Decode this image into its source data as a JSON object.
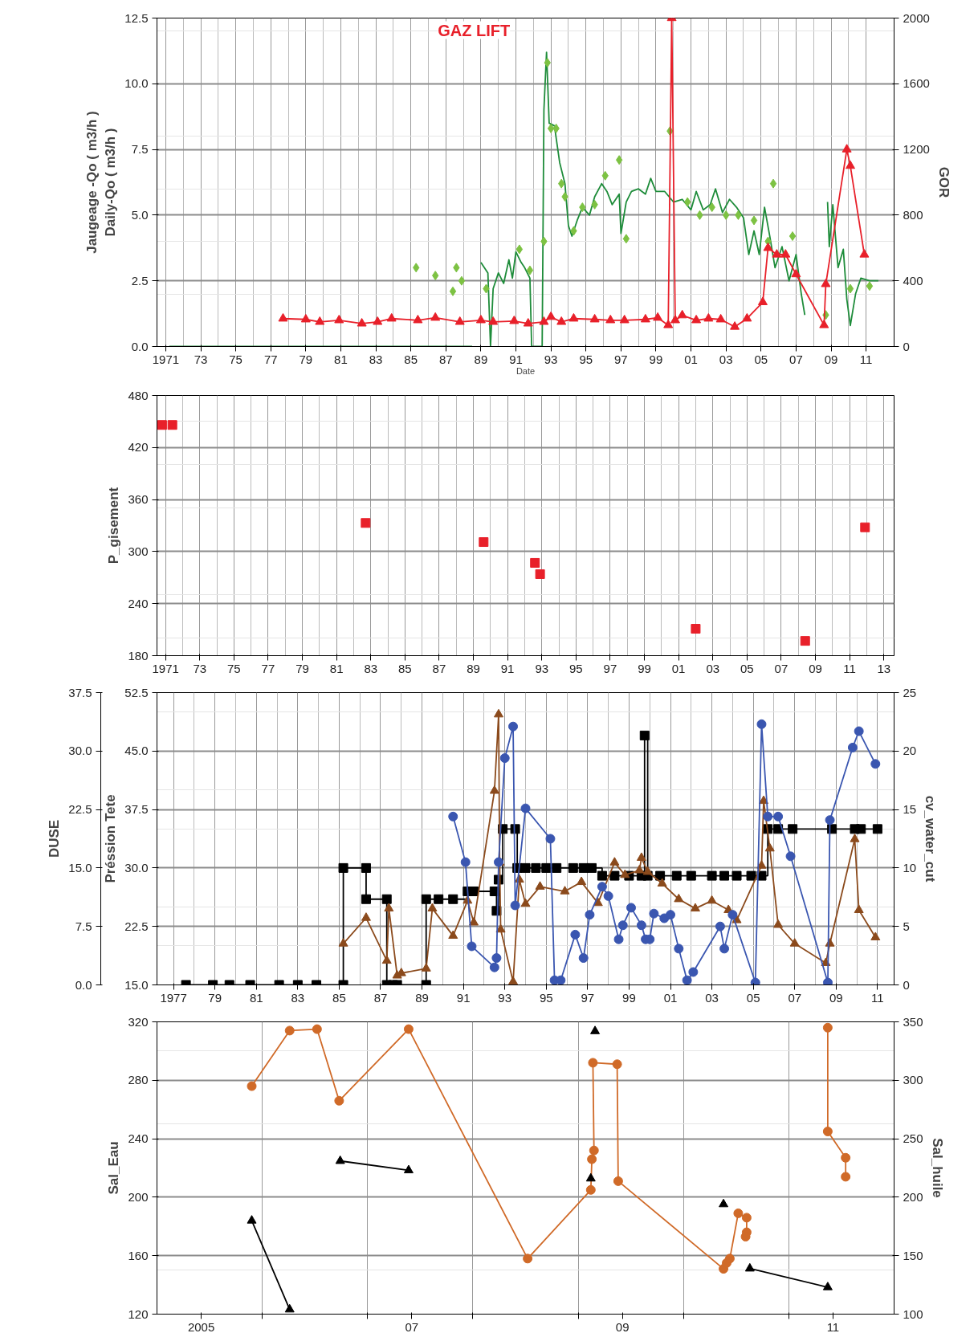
{
  "chart_data": [
    {
      "type": "line",
      "xlabel": "Date",
      "ylabel": "Jaugeage -Qo ( m3/h )\nDaily-Qo ( m3/h )",
      "y2label": "GOR",
      "grid": true,
      "line_style": "solid",
      "annotations": [
        "GAZ LIFT"
      ],
      "xlim": [
        1970.5,
        2012.6
      ],
      "xticks": [
        1971,
        {
          "value": 1973,
          "label": "73"
        },
        {
          "value": 1975,
          "label": "75"
        },
        {
          "value": 1977,
          "label": "77"
        },
        {
          "value": 1979,
          "label": "79"
        },
        {
          "value": 1981,
          "label": "81"
        },
        {
          "value": 1983,
          "label": "83"
        },
        {
          "value": 1985,
          "label": "85"
        },
        {
          "value": 1987,
          "label": "87"
        },
        {
          "value": 1989,
          "label": "89"
        },
        {
          "value": 1991,
          "label": "91"
        },
        {
          "value": 1993,
          "label": "93"
        },
        {
          "value": 1995,
          "label": "95"
        },
        {
          "value": 1997,
          "label": "97"
        },
        {
          "value": 1999,
          "label": "99"
        },
        {
          "value": 2001,
          "label": "01"
        },
        {
          "value": 2003,
          "label": "03"
        },
        {
          "value": 2005,
          "label": "05"
        },
        {
          "value": 2007,
          "label": "07"
        },
        {
          "value": 2009,
          "label": "09"
        },
        {
          "value": 2011,
          "label": "11"
        }
      ],
      "ylim": [
        0,
        12.5
      ],
      "yticks": [
        {
          "value": 0,
          "label": "0.0"
        },
        {
          "value": 2.5,
          "label": "2.5"
        },
        {
          "value": 5,
          "label": "5.0"
        },
        {
          "value": 7.5,
          "label": "7.5"
        },
        {
          "value": 10,
          "label": "10.0"
        },
        {
          "value": 12.5,
          "label": "12.5"
        }
      ],
      "y2lim": [
        0,
        2000
      ],
      "y2ticks": [
        0,
        400,
        800,
        1200,
        1600,
        2000
      ],
      "series": [
        {
          "color": "#1e8c3a",
          "marker": "none",
          "x": [
            1971.2,
            1988.5,
            1988.7,
            1989.0,
            1989.4,
            1989.55,
            1989.7,
            1990.0,
            1990.3,
            1990.6,
            1990.8,
            1991.0,
            1991.3,
            1991.5,
            1991.8,
            1991.9,
            1992.5,
            1992.6,
            1992.75,
            1992.9,
            1993.2,
            1993.5,
            1993.8,
            1994.0,
            1994.2,
            1994.5,
            1994.8,
            1995.2,
            1995.5,
            1995.9,
            1996.2,
            1996.5,
            1996.9,
            1997.0,
            1997.3,
            1997.6,
            1998.0,
            1998.4,
            1998.7,
            1999.0,
            1999.5,
            2000.0,
            2000.5,
            2001.0,
            2001.3,
            2001.7,
            2002.1,
            2002.4,
            2002.8,
            2003.2,
            2003.6,
            2004.0,
            2004.3,
            2004.6,
            2004.9,
            2005.2,
            2005.5,
            2005.8,
            2006.2,
            2006.6,
            2007.0,
            2007.3,
            2007.5,
            2008.0,
            2008.8,
            2008.9,
            2009.1,
            2009.4,
            2009.7,
            2009.9,
            2010.1,
            2010.4,
            2010.7,
            2011.2,
            2011.7
          ],
          "values": [
            0,
            0,
            null,
            3.2,
            2.8,
            0,
            2.2,
            2.8,
            2.4,
            3.3,
            2.6,
            3.6,
            3.2,
            3.0,
            2.6,
            0,
            0,
            9.0,
            11.2,
            8.5,
            8.4,
            7.0,
            6.2,
            4.6,
            4.2,
            4.8,
            5.3,
            5.0,
            5.7,
            6.2,
            5.9,
            5.4,
            5.8,
            4.3,
            5.5,
            5.9,
            6.0,
            5.8,
            6.4,
            5.9,
            5.9,
            5.5,
            5.6,
            5.2,
            5.9,
            5.2,
            5.4,
            6.0,
            5.1,
            5.6,
            5.3,
            4.9,
            3.5,
            4.4,
            3.5,
            5.3,
            4.2,
            3.0,
            3.8,
            2.5,
            3.5,
            2.0,
            1.2,
            null,
            5.5,
            3.8,
            5.4,
            3.0,
            3.7,
            1.8,
            0.8,
            2.0,
            2.6,
            2.5,
            2.5
          ]
        },
        {
          "type": "scatter",
          "color": "#7dc243",
          "marker": "diamond",
          "x": [
            1985.3,
            1986.4,
            1987.4,
            1987.6,
            1987.9,
            1989.3,
            1991.2,
            1991.8,
            1992.6,
            1992.8,
            1993.0,
            1993.3,
            1993.6,
            1993.8,
            1994.3,
            1994.8,
            1995.5,
            1996.1,
            1996.9,
            1997.3,
            1999.8,
            2000.8,
            2001.5,
            2002.2,
            2003.0,
            2003.7,
            2004.6,
            2005.4,
            2005.7,
            2006.8,
            2008.7,
            2010.1,
            2011.2
          ],
          "values": [
            3.0,
            2.7,
            2.1,
            3.0,
            2.5,
            2.2,
            3.7,
            2.9,
            4.0,
            10.8,
            8.3,
            8.3,
            6.2,
            5.7,
            4.4,
            5.3,
            5.4,
            6.5,
            7.1,
            4.1,
            8.2,
            5.5,
            5.0,
            5.3,
            5.0,
            5.0,
            4.8,
            4.0,
            6.2,
            4.2,
            1.2,
            2.2,
            2.3
          ]
        },
        {
          "axis": "y2",
          "color": "#e8202a",
          "marker": "triangle",
          "x": [
            1977.7,
            1979.0,
            1979.8,
            1980.9,
            1982.2,
            1983.1,
            1983.9,
            1985.4,
            1986.4,
            1987.8,
            1989.0,
            1989.7,
            1990.9,
            1991.7,
            1992.6,
            1993.0,
            1993.6,
            1994.3,
            1995.5,
            1996.4,
            1997.2,
            1998.4,
            1999.1,
            1999.7,
            1999.9,
            2000.1,
            2000.5,
            2001.3,
            2002.0,
            2002.7,
            2003.5,
            2004.2,
            2005.1,
            2005.4,
            2005.9,
            2006.4,
            2007.0,
            2008.6,
            2008.7,
            2009.9,
            2010.1,
            2010.9
          ],
          "values": [
            170,
            165,
            150,
            160,
            140,
            150,
            170,
            160,
            175,
            150,
            160,
            150,
            155,
            140,
            150,
            180,
            150,
            170,
            165,
            160,
            160,
            165,
            175,
            130,
            2000,
            160,
            190,
            160,
            170,
            165,
            120,
            170,
            270,
            600,
            560,
            560,
            440,
            130,
            380,
            1200,
            1100,
            560
          ]
        }
      ]
    },
    {
      "type": "scatter",
      "ylabel": "P_gisement",
      "grid": true,
      "xlim": [
        1970.5,
        2013.6
      ],
      "xticks": [
        1971,
        {
          "value": 1973,
          "label": "73"
        },
        {
          "value": 1975,
          "label": "75"
        },
        {
          "value": 1977,
          "label": "77"
        },
        {
          "value": 1979,
          "label": "79"
        },
        {
          "value": 1981,
          "label": "81"
        },
        {
          "value": 1983,
          "label": "83"
        },
        {
          "value": 1985,
          "label": "85"
        },
        {
          "value": 1987,
          "label": "87"
        },
        {
          "value": 1989,
          "label": "89"
        },
        {
          "value": 1991,
          "label": "91"
        },
        {
          "value": 1993,
          "label": "93"
        },
        {
          "value": 1995,
          "label": "95"
        },
        {
          "value": 1997,
          "label": "97"
        },
        {
          "value": 1999,
          "label": "99"
        },
        {
          "value": 2001,
          "label": "01"
        },
        {
          "value": 2003,
          "label": "03"
        },
        {
          "value": 2005,
          "label": "05"
        },
        {
          "value": 2007,
          "label": "07"
        },
        {
          "value": 2009,
          "label": "09"
        },
        {
          "value": 2011,
          "label": "11"
        },
        {
          "value": 2013,
          "label": "13"
        }
      ],
      "ylim": [
        180,
        480
      ],
      "yticks": [
        180,
        240,
        300,
        360,
        420,
        480
      ],
      "series": [
        {
          "color": "#e8202a",
          "marker": "square",
          "x": [
            1970.8,
            1971.4,
            1982.7,
            1989.6,
            1992.6,
            1992.9,
            2002.0,
            2008.4,
            2011.9
          ],
          "values": [
            446,
            446,
            333,
            311,
            287,
            274,
            211,
            197,
            328
          ]
        }
      ]
    },
    {
      "type": "line",
      "ylabel": "DUSE",
      "y3label": "Préssion Tete",
      "y2label": "cv_water_cut",
      "grid": true,
      "line_style": "solid",
      "xlim": [
        1976.2,
        2011.8
      ],
      "xticks": [
        1977,
        {
          "value": 1979,
          "label": "79"
        },
        {
          "value": 1981,
          "label": "81"
        },
        {
          "value": 1983,
          "label": "83"
        },
        {
          "value": 1985,
          "label": "85"
        },
        {
          "value": 1987,
          "label": "87"
        },
        {
          "value": 1989,
          "label": "89"
        },
        {
          "value": 1991,
          "label": "91"
        },
        {
          "value": 1993,
          "label": "93"
        },
        {
          "value": 1995,
          "label": "95"
        },
        {
          "value": 1997,
          "label": "97"
        },
        {
          "value": 1999,
          "label": "99"
        },
        {
          "value": 2001,
          "label": "01"
        },
        {
          "value": 2003,
          "label": "03"
        },
        {
          "value": 2005,
          "label": "05"
        },
        {
          "value": 2007,
          "label": "07"
        },
        {
          "value": 2009,
          "label": "09"
        },
        {
          "value": 2011,
          "label": "11"
        }
      ],
      "ylim": [
        0,
        37.5
      ],
      "yticks": [
        {
          "value": 0,
          "label": "0.0"
        },
        {
          "value": 7.5,
          "label": "7.5"
        },
        {
          "value": 15,
          "label": "15.0"
        },
        {
          "value": 22.5,
          "label": "22.5"
        },
        {
          "value": 30,
          "label": "30.0"
        },
        {
          "value": 37.5,
          "label": "37.5"
        }
      ],
      "y3lim": [
        15,
        52.5
      ],
      "y3ticks": [
        {
          "value": 15,
          "label": "15.0"
        },
        {
          "value": 22.5,
          "label": "22.5"
        },
        {
          "value": 30,
          "label": "30.0"
        },
        {
          "value": 37.5,
          "label": "37.5"
        },
        {
          "value": 45,
          "label": "45.0"
        },
        {
          "value": 52.5,
          "label": "52.5"
        }
      ],
      "y2lim": [
        0,
        25
      ],
      "y2ticks": [
        0,
        5,
        10,
        15,
        20,
        25
      ],
      "series": [
        {
          "type": "step",
          "color": "#000000",
          "marker": "square",
          "x": [
            1977.6,
            1978.9,
            1979.7,
            1980.7,
            1982.1,
            1983.0,
            1983.9,
            1985.2,
            1985.2,
            1986.3,
            1986.3,
            1987.3,
            1987.3,
            1987.6,
            1987.8,
            1989.2,
            1989.2,
            1989.8,
            1990.5,
            1991.2,
            1991.5,
            1992.5,
            1992.6,
            1992.7,
            1992.9,
            1993.5,
            1993.6,
            1994.0,
            1994.5,
            1995.0,
            1995.5,
            1996.3,
            1996.8,
            1997.2,
            1997.7,
            1998.3,
            1999.0,
            1999.6,
            1999.75,
            1999.9,
            2000.5,
            2001.3,
            2002.0,
            2003.0,
            2003.6,
            2004.2,
            2004.9,
            2005.4,
            2005.7,
            2006.2,
            2006.9,
            2008.8,
            2009.9,
            2010.2,
            2011.0
          ],
          "values": [
            0,
            0,
            0,
            0,
            0,
            0,
            0,
            0,
            15,
            15,
            11,
            11,
            0,
            0,
            0,
            0,
            11,
            11,
            11,
            12,
            12,
            12,
            9.5,
            13.5,
            20,
            20,
            15,
            15,
            15,
            15,
            15,
            15,
            15,
            15,
            14,
            14,
            14,
            14,
            32,
            14,
            14,
            14,
            14,
            14,
            14,
            14,
            14,
            14,
            20,
            20,
            20,
            20,
            20,
            20,
            20
          ]
        },
        {
          "axis": "y3",
          "color": "#8b4a1c",
          "marker": "triangle",
          "x": [
            1985.2,
            1986.3,
            1987.3,
            1987.4,
            1987.8,
            1988.0,
            1989.2,
            1989.5,
            1990.5,
            1991.2,
            1991.5,
            1992.5,
            1992.7,
            1992.75,
            1992.8,
            1993.4,
            1993.7,
            1994.0,
            1994.7,
            1995.9,
            1996.7,
            1997.5,
            1998.3,
            1998.8,
            1999.5,
            1999.6,
            1999.9,
            2000.6,
            2001.4,
            2002.2,
            2003.0,
            2003.8,
            2004.2,
            2005.4,
            2005.5,
            2005.8,
            2006.2,
            2007.0,
            2008.5,
            2008.7,
            2009.9,
            2010.1,
            2010.9
          ],
          "values": [
            20.3,
            23.6,
            18.1,
            24.8,
            16.2,
            16.5,
            17.1,
            24.8,
            21.3,
            25.8,
            23.0,
            39.9,
            49.7,
            30.7,
            22.1,
            15.4,
            28.5,
            25.4,
            27.6,
            27.0,
            28.2,
            25.5,
            30.7,
            29.1,
            29.7,
            31.3,
            29.5,
            28.0,
            26.0,
            24.8,
            25.8,
            24.6,
            23.3,
            30.3,
            38.6,
            32.5,
            22.7,
            20.3,
            17.8,
            20.3,
            33.7,
            24.6,
            21.1
          ]
        },
        {
          "axis": "y2",
          "color": "#3a56b0",
          "marker": "circle",
          "x": [
            1990.5,
            1991.1,
            1991.4,
            1992.5,
            1992.6,
            1992.7,
            1993.0,
            1993.4,
            1993.5,
            1994.0,
            1995.2,
            1995.4,
            1995.7,
            1996.4,
            1996.8,
            1997.1,
            1997.7,
            1998.0,
            1998.5,
            1998.7,
            1999.1,
            1999.6,
            1999.8,
            2000.0,
            2000.2,
            2000.7,
            2001.0,
            2001.4,
            2001.8,
            2002.1,
            2003.4,
            2003.6,
            2004.0,
            2005.1,
            2005.4,
            2005.7,
            2006.2,
            2006.8,
            2008.6,
            2008.7,
            2009.8,
            2010.1,
            2010.9
          ],
          "values": [
            14.4,
            10.5,
            3.3,
            1.5,
            2.3,
            10.5,
            19.4,
            22.1,
            6.8,
            15.1,
            12.5,
            0.4,
            0.4,
            4.3,
            2.3,
            6.0,
            8.4,
            7.6,
            3.9,
            5.1,
            6.6,
            5.1,
            3.9,
            3.9,
            6.1,
            5.7,
            6.0,
            3.1,
            0.4,
            1.1,
            5.0,
            3.1,
            6.0,
            0.2,
            22.3,
            14.4,
            14.4,
            11.0,
            0.2,
            14.1,
            20.3,
            21.7,
            18.9
          ]
        }
      ]
    },
    {
      "type": "line",
      "ylabel": "Sal_Eau",
      "y2label": "Sal_huile",
      "grid": true,
      "line_style": "solid",
      "xlim": [
        2004.58,
        2011.58
      ],
      "xticks": [
        2005,
        {
          "value": 2005.58,
          "label": null
        },
        {
          "value": 2006.58,
          "label": null
        },
        {
          "value": 2007,
          "label": "07"
        },
        {
          "value": 2007.58,
          "label": null
        },
        {
          "value": 2008.58,
          "label": null
        },
        {
          "value": 2009,
          "label": "09"
        },
        {
          "value": 2009.58,
          "label": null
        },
        {
          "value": 2010.58,
          "label": null
        },
        {
          "value": 2011,
          "label": "11"
        }
      ],
      "ylim": [
        120,
        320
      ],
      "yticks": [
        120,
        160,
        200,
        240,
        280,
        320
      ],
      "y2lim": [
        100,
        350
      ],
      "y2ticks": [
        100,
        150,
        200,
        250,
        300,
        350
      ],
      "series": [
        {
          "color": "#d06a28",
          "marker": "circle",
          "x": [
            2005.48,
            2005.84,
            2006.1,
            2006.31,
            2006.97,
            2008.1,
            2008.7,
            2008.71,
            2008.73,
            2008.72,
            2008.95,
            2008.96,
            2009.96,
            2009.99,
            2010.02,
            2010.1,
            2010.18,
            2010.18,
            2010.17,
            2010.58,
            2010.95,
            2010.95,
            2011.12,
            2011.12
          ],
          "values": [
            276,
            314,
            315,
            266,
            315,
            158,
            205,
            226,
            232,
            292,
            291,
            211,
            151,
            155,
            158,
            189,
            186,
            176,
            173,
            null,
            316,
            245,
            227,
            214
          ]
        },
        {
          "axis": "y2",
          "color": "#000000",
          "marker": "triangle",
          "x": [
            2005.48,
            2005.84,
            2006.08,
            2006.32,
            2006.97,
            2007.58,
            2008.7,
            2008.72,
            2008.74,
            2009.08,
            2009.96,
            2010.08,
            2010.21,
            2010.95
          ],
          "values": [
            180,
            104,
            null,
            231,
            223,
            null,
            216,
            null,
            342,
            null,
            194,
            null,
            139,
            123
          ]
        }
      ]
    }
  ]
}
